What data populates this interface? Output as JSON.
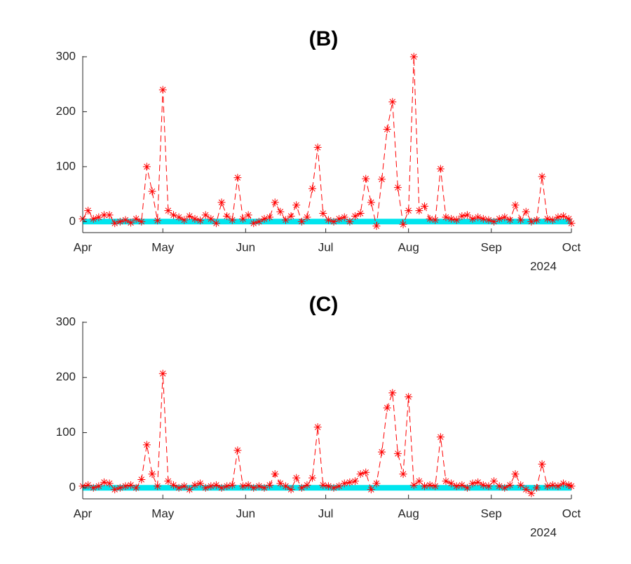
{
  "chart_data": [
    {
      "type": "line",
      "title": "(B)",
      "annotation": "2024",
      "xlim": [
        0,
        183
      ],
      "xticks": [
        {
          "value": 0,
          "label": "Apr"
        },
        {
          "value": 30,
          "label": "May"
        },
        {
          "value": 61,
          "label": "Jun"
        },
        {
          "value": 91,
          "label": "Jul"
        },
        {
          "value": 122,
          "label": "Aug"
        },
        {
          "value": 153,
          "label": "Sep"
        },
        {
          "value": 183,
          "label": "Oct"
        }
      ],
      "ylim": [
        -20,
        300
      ],
      "yticks": [
        0,
        100,
        200,
        300
      ],
      "series": [
        {
          "color": "#00e5ee",
          "x": [
            0,
            183
          ],
          "values": [
            0,
            0
          ]
        },
        {
          "color": "#ff0000",
          "x": [
            0,
            2,
            4,
            6,
            8,
            10,
            12,
            14,
            16,
            18,
            20,
            22,
            24,
            26,
            28,
            30,
            32,
            34,
            36,
            38,
            40,
            42,
            44,
            46,
            48,
            50,
            52,
            54,
            56,
            58,
            60,
            62,
            64,
            66,
            68,
            70,
            72,
            74,
            76,
            78,
            80,
            82,
            84,
            86,
            88,
            90,
            92,
            94,
            96,
            98,
            100,
            102,
            104,
            106,
            108,
            110,
            112,
            114,
            116,
            118,
            120,
            122,
            124,
            126,
            128,
            130,
            132,
            134,
            136,
            138,
            140,
            142,
            144,
            146,
            148,
            150,
            152,
            154,
            156,
            158,
            160,
            162,
            164,
            166,
            168,
            170,
            172,
            174,
            176,
            178,
            180,
            182,
            183
          ],
          "values": [
            5,
            20,
            5,
            8,
            12,
            12,
            -3,
            0,
            3,
            -2,
            5,
            0,
            100,
            55,
            2,
            240,
            20,
            12,
            8,
            3,
            10,
            5,
            2,
            12,
            5,
            -3,
            35,
            10,
            3,
            80,
            5,
            12,
            -3,
            0,
            5,
            8,
            35,
            18,
            3,
            10,
            30,
            0,
            8,
            60,
            135,
            15,
            3,
            0,
            5,
            8,
            0,
            10,
            15,
            78,
            35,
            -8,
            77,
            168,
            218,
            62,
            -5,
            20,
            300,
            20,
            28,
            5,
            3,
            96,
            8,
            5,
            3,
            10,
            12,
            5,
            8,
            5,
            3,
            0,
            5,
            8,
            3,
            30,
            3,
            18,
            0,
            3,
            82,
            5,
            3,
            8,
            10,
            5,
            -3
          ]
        }
      ]
    },
    {
      "type": "line",
      "title": "(C)",
      "annotation": "2024",
      "xlim": [
        0,
        183
      ],
      "xticks": [
        {
          "value": 0,
          "label": "Apr"
        },
        {
          "value": 30,
          "label": "May"
        },
        {
          "value": 61,
          "label": "Jun"
        },
        {
          "value": 91,
          "label": "Jul"
        },
        {
          "value": 122,
          "label": "Aug"
        },
        {
          "value": 153,
          "label": "Sep"
        },
        {
          "value": 183,
          "label": "Oct"
        }
      ],
      "ylim": [
        -20,
        300
      ],
      "yticks": [
        0,
        100,
        200,
        300
      ],
      "series": [
        {
          "color": "#00e5ee",
          "x": [
            0,
            183
          ],
          "values": [
            0,
            0
          ]
        },
        {
          "color": "#ff0000",
          "x": [
            0,
            2,
            4,
            6,
            8,
            10,
            12,
            14,
            16,
            18,
            20,
            22,
            24,
            26,
            28,
            30,
            32,
            34,
            36,
            38,
            40,
            42,
            44,
            46,
            48,
            50,
            52,
            54,
            56,
            58,
            60,
            62,
            64,
            66,
            68,
            70,
            72,
            74,
            76,
            78,
            80,
            82,
            84,
            86,
            88,
            90,
            92,
            94,
            96,
            98,
            100,
            102,
            104,
            106,
            108,
            110,
            112,
            114,
            116,
            118,
            120,
            122,
            124,
            126,
            128,
            130,
            132,
            134,
            136,
            138,
            140,
            142,
            144,
            146,
            148,
            150,
            152,
            154,
            156,
            158,
            160,
            162,
            164,
            166,
            168,
            170,
            172,
            174,
            176,
            178,
            180,
            182,
            183
          ],
          "values": [
            3,
            5,
            0,
            3,
            10,
            8,
            -3,
            0,
            3,
            5,
            0,
            15,
            78,
            25,
            3,
            207,
            12,
            5,
            0,
            3,
            -3,
            5,
            8,
            0,
            3,
            5,
            0,
            3,
            5,
            68,
            3,
            5,
            0,
            3,
            0,
            5,
            25,
            8,
            3,
            -3,
            18,
            0,
            5,
            18,
            110,
            5,
            3,
            0,
            3,
            8,
            10,
            12,
            25,
            28,
            -3,
            8,
            65,
            145,
            172,
            62,
            25,
            165,
            5,
            12,
            3,
            5,
            3,
            92,
            12,
            8,
            3,
            5,
            0,
            8,
            10,
            5,
            3,
            12,
            3,
            0,
            5,
            25,
            5,
            -3,
            -10,
            0,
            43,
            3,
            5,
            3,
            8,
            5,
            3
          ]
        }
      ]
    }
  ]
}
